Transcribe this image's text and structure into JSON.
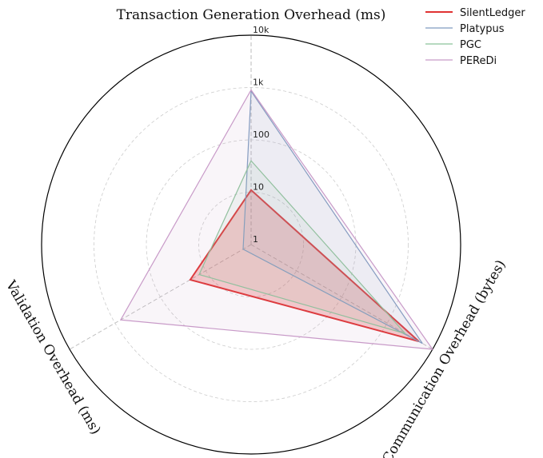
{
  "chart_data": {
    "type": "radar",
    "categories": [
      "Transaction Generation Overhead (ms)",
      "Communication Overhead (bytes)",
      "Validation Overhead (ms)"
    ],
    "log_scale": true,
    "ylim": [
      1,
      10000
    ],
    "yticks": [
      1,
      10,
      100,
      {
        "value": 1000,
        "label": "1k"
      },
      {
        "value": 10000,
        "label": "10k"
      }
    ],
    "grid": true,
    "legend": "upper right",
    "series": [
      {
        "name": "SilentLedger",
        "color": "#e03232",
        "values": [
          11,
          5000,
          22
        ]
      },
      {
        "name": "Platypus",
        "color": "#7f9cc0",
        "values": [
          850,
          6000,
          1.5
        ]
      },
      {
        "name": "PGC",
        "color": "#8cc49a",
        "values": [
          40,
          2500,
          14
        ]
      },
      {
        "name": "PEReDi",
        "color": "#c89ac8",
        "values": [
          900,
          10000,
          750
        ]
      }
    ]
  }
}
